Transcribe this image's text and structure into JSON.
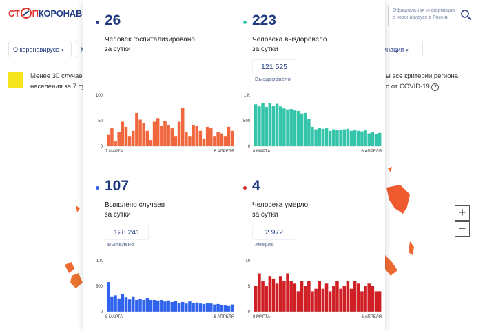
{
  "header": {
    "logo": {
      "part1": "СТ",
      "part2": "П",
      "part3": "КОРОНАВИ"
    },
    "official_text": "Официальная информация о коронавирусе в России"
  },
  "nav": {
    "about": "О коронавирусе",
    "m": "М",
    "vaccination": "кцинация"
  },
  "legend": {
    "line1": "Менее 30 случаев",
    "line2": "населения за 7 су",
    "right_line1": "ы все критерии региона",
    "right_line2": "о от COVID-19"
  },
  "zoom": {
    "in": "+",
    "out": "−"
  },
  "colors": {
    "hosp": "#f0673e",
    "recov": "#33c4a9",
    "cases": "#2f63ee",
    "deaths": "#cf1f25",
    "accent": "#1f3a80"
  },
  "stats": {
    "hosp": {
      "value": "26",
      "desc1": "Человек госпитализировано",
      "desc2": "за сутки"
    },
    "recov": {
      "value": "223",
      "desc1": "Человека выздоровело",
      "desc2": "за сутки",
      "total": "121 525",
      "total_label": "Выздоровело"
    },
    "cases": {
      "value": "107",
      "desc1": "Выявлено случаев",
      "desc2": "за сутки",
      "total": "128 241",
      "total_label": "Выявлено"
    },
    "deaths": {
      "value": "4",
      "desc1": "Человека умерло",
      "desc2": "за сутки",
      "total": "2 972",
      "total_label": "Умерло"
    }
  },
  "chart_data": [
    {
      "type": "bar",
      "name": "hosp",
      "color": "#f0673e",
      "ylim": [
        0,
        100
      ],
      "yticks": [
        "100",
        "50",
        "0"
      ],
      "ytick_values": [
        100,
        50,
        0
      ],
      "xlabel_start": "7 МАРТА",
      "xlabel_end": "6 АПРЕЛЯ",
      "values": [
        22,
        35,
        10,
        28,
        48,
        38,
        20,
        30,
        65,
        52,
        45,
        30,
        12,
        48,
        55,
        40,
        50,
        42,
        35,
        20,
        48,
        75,
        28,
        20,
        42,
        40,
        30,
        15,
        38,
        35,
        20,
        28,
        25,
        20,
        38,
        30
      ]
    },
    {
      "type": "bar",
      "name": "recov",
      "color": "#33c4a9",
      "ylim": [
        0,
        1000
      ],
      "yticks": [
        "1 K",
        "500",
        "0"
      ],
      "ytick_values": [
        1000,
        500,
        0
      ],
      "xlabel_start": "8 МАРТА",
      "xlabel_end": "6 АПРЕЛЯ",
      "values": [
        820,
        780,
        850,
        770,
        840,
        790,
        830,
        780,
        740,
        720,
        730,
        700,
        690,
        640,
        650,
        540,
        380,
        330,
        360,
        340,
        350,
        300,
        330,
        310,
        320,
        330,
        340,
        300,
        320,
        300,
        290,
        310,
        250,
        270,
        240,
        260
      ]
    },
    {
      "type": "bar",
      "name": "cases",
      "color": "#2f63ee",
      "ylim": [
        0,
        1000
      ],
      "yticks": [
        "1 K",
        "500",
        "0"
      ],
      "ytick_values": [
        1000,
        500,
        0
      ],
      "xlabel_start": "8 МАРТА",
      "xlabel_end": "6 АПРЕЛЯ",
      "values": [
        580,
        300,
        320,
        260,
        350,
        280,
        240,
        300,
        230,
        250,
        230,
        270,
        230,
        230,
        220,
        230,
        200,
        220,
        190,
        210,
        170,
        190,
        160,
        200,
        170,
        180,
        160,
        150,
        170,
        160,
        140,
        150,
        130,
        120,
        110,
        140
      ]
    },
    {
      "type": "bar",
      "name": "deaths",
      "color": "#cf1f25",
      "ylim": [
        0,
        10
      ],
      "yticks": [
        "10",
        "5",
        "0"
      ],
      "ytick_values": [
        10,
        5,
        0
      ],
      "xlabel_start": "8 МАРТА",
      "xlabel_end": "6 АПРЕЛЯ",
      "values": [
        5,
        7.5,
        6,
        5,
        7,
        6.5,
        5.5,
        7,
        6,
        7.5,
        6,
        5.5,
        4,
        6,
        5,
        6,
        4,
        4.5,
        6,
        4.5,
        5.5,
        4,
        5,
        6,
        4.5,
        5,
        6,
        4.5,
        6,
        5.5,
        4,
        5,
        5.5,
        5,
        4,
        4
      ]
    }
  ]
}
